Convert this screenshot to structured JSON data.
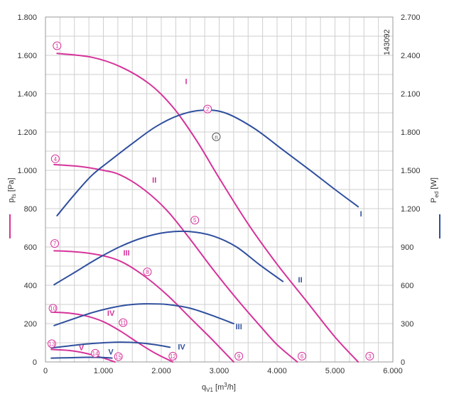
{
  "chart_data": {
    "type": "line",
    "id_label": "143092",
    "xlabel_html": {
      "base": "q",
      "sub": "V1",
      "unit_pre": " [m",
      "unit_sup": "3",
      "unit_post": "/h]"
    },
    "ylabel_left": {
      "base": "p",
      "sub": "fs",
      "unit": " [Pa]"
    },
    "ylabel_right": {
      "base": "P",
      "sub": "ed",
      "unit": " [W]"
    },
    "xlim": [
      0,
      6000
    ],
    "ylim_left": [
      0,
      1800
    ],
    "ylim_right": [
      0,
      2700
    ],
    "x_ticks": [
      0,
      1000,
      2000,
      3000,
      4000,
      5000,
      6000
    ],
    "x_tick_labels": [
      "0",
      "1.000",
      "2.000",
      "3.000",
      "4.000",
      "5.000",
      "6.000"
    ],
    "y_left_ticks": [
      0,
      200,
      400,
      600,
      800,
      1000,
      1200,
      1400,
      1600,
      1800
    ],
    "y_left_tick_labels": [
      "0",
      "200",
      "400",
      "600",
      "800",
      "1.000",
      "1.200",
      "1.400",
      "1.600",
      "1.800"
    ],
    "y_right_ticks": [
      0,
      300,
      600,
      900,
      1200,
      1500,
      1800,
      2100,
      2400,
      2700
    ],
    "y_right_tick_labels": [
      "0",
      "300",
      "600",
      "900",
      "1.200",
      "1.500",
      "1.800",
      "2.100",
      "2.400",
      "2.700"
    ],
    "x_minor_step": 250,
    "y_minor_step": 100,
    "grid": true,
    "colors": {
      "pressure": "#d6339a",
      "power": "#2f4f9e",
      "grid": "#cfcfcf",
      "text": "#333333",
      "special": "#555555"
    },
    "series": [
      {
        "name": "I",
        "kind": "pressure",
        "axis": "left",
        "x": [
          200,
          800,
          1300,
          1800,
          2200,
          2600,
          3000,
          3500,
          4000,
          4500,
          5000,
          5400
        ],
        "y": [
          1610,
          1590,
          1540,
          1450,
          1330,
          1160,
          960,
          720,
          510,
          320,
          130,
          0
        ]
      },
      {
        "name": "II",
        "kind": "pressure",
        "axis": "left",
        "x": [
          150,
          600,
          1000,
          1300,
          1700,
          2100,
          2500,
          2900,
          3300,
          3700,
          4000,
          4350
        ],
        "y": [
          1030,
          1020,
          1000,
          975,
          900,
          790,
          640,
          480,
          330,
          190,
          90,
          0
        ]
      },
      {
        "name": "III",
        "kind": "pressure",
        "axis": "left",
        "x": [
          150,
          500,
          900,
          1300,
          1700,
          2100,
          2500,
          2900,
          3250
        ],
        "y": [
          580,
          575,
          560,
          525,
          450,
          350,
          230,
          110,
          0
        ]
      },
      {
        "name": "IV",
        "kind": "pressure",
        "axis": "left",
        "x": [
          100,
          400,
          700,
          1000,
          1300,
          1600,
          1900,
          2200
        ],
        "y": [
          260,
          255,
          240,
          210,
          160,
          100,
          45,
          0
        ]
      },
      {
        "name": "V",
        "kind": "pressure",
        "axis": "left",
        "x": [
          100,
          400,
          700,
          1000,
          1200
        ],
        "y": [
          65,
          60,
          45,
          20,
          0
        ]
      },
      {
        "name": "I",
        "kind": "power",
        "axis": "right",
        "x": [
          200,
          500,
          800,
          1100,
          1500,
          1900,
          2300,
          2700,
          3100,
          3600,
          4100,
          4600,
          5000,
          5400
        ],
        "y": [
          1145,
          1310,
          1460,
          1570,
          1710,
          1840,
          1930,
          1970,
          1950,
          1830,
          1660,
          1490,
          1350,
          1215
        ]
      },
      {
        "name": "II",
        "kind": "power",
        "axis": "right",
        "x": [
          150,
          500,
          900,
          1300,
          1700,
          2100,
          2500,
          2900,
          3300,
          3700,
          4100
        ],
        "y": [
          605,
          700,
          810,
          905,
          975,
          1015,
          1020,
          985,
          900,
          760,
          630
        ]
      },
      {
        "name": "III",
        "kind": "power",
        "axis": "right",
        "x": [
          150,
          500,
          800,
          1100,
          1400,
          1700,
          2100,
          2500,
          2900,
          3250
        ],
        "y": [
          285,
          340,
          385,
          420,
          445,
          455,
          450,
          420,
          360,
          300
        ]
      },
      {
        "name": "IV",
        "kind": "power",
        "axis": "right",
        "x": [
          100,
          400,
          700,
          1000,
          1300,
          1600,
          1900,
          2150
        ],
        "y": [
          110,
          125,
          140,
          150,
          155,
          150,
          135,
          115
        ]
      },
      {
        "name": "V",
        "kind": "power",
        "axis": "right",
        "x": [
          100,
          400,
          700,
          1000,
          1150
        ],
        "y": [
          30,
          33,
          36,
          35,
          30
        ]
      }
    ],
    "roman_labels": [
      {
        "text": "I",
        "kind": "pressure",
        "x": 2430,
        "y_left": 1450
      },
      {
        "text": "II",
        "kind": "pressure",
        "x": 1880,
        "y_left": 935
      },
      {
        "text": "III",
        "kind": "pressure",
        "x": 1400,
        "y_left": 555
      },
      {
        "text": "IV",
        "kind": "pressure",
        "x": 1130,
        "y_left": 240
      },
      {
        "text": "V",
        "kind": "pressure",
        "x": 620,
        "y_left": 62
      },
      {
        "text": "I",
        "kind": "power",
        "x": 5450,
        "y_left": 760
      },
      {
        "text": "II",
        "kind": "power",
        "x": 4400,
        "y_left": 415
      },
      {
        "text": "III",
        "kind": "power",
        "x": 3340,
        "y_left": 170
      },
      {
        "text": "IV",
        "kind": "power",
        "x": 2350,
        "y_left": 65
      },
      {
        "text": "V",
        "kind": "power",
        "x": 1130,
        "y_left": 38
      }
    ],
    "markers": [
      {
        "label": "1",
        "kind": "pressure",
        "x": 200,
        "y_left": 1650
      },
      {
        "label": "2",
        "kind": "pressure",
        "x": 2800,
        "y_left": 1320
      },
      {
        "label": "n",
        "kind": "special",
        "x": 2950,
        "y_left": 1175
      },
      {
        "label": "3",
        "kind": "pressure",
        "x": 5600,
        "y_left": 30
      },
      {
        "label": "4",
        "kind": "pressure",
        "x": 170,
        "y_left": 1060
      },
      {
        "label": "5",
        "kind": "pressure",
        "x": 2580,
        "y_left": 740
      },
      {
        "label": "6",
        "kind": "pressure",
        "x": 4430,
        "y_left": 30
      },
      {
        "label": "7",
        "kind": "pressure",
        "x": 160,
        "y_left": 618
      },
      {
        "label": "8",
        "kind": "pressure",
        "x": 1760,
        "y_left": 470
      },
      {
        "label": "9",
        "kind": "pressure",
        "x": 3340,
        "y_left": 30
      },
      {
        "label": "10",
        "kind": "pressure",
        "x": 130,
        "y_left": 280
      },
      {
        "label": "11",
        "kind": "pressure",
        "x": 1340,
        "y_left": 205
      },
      {
        "label": "12",
        "kind": "pressure",
        "x": 2200,
        "y_left": 30
      },
      {
        "label": "13",
        "kind": "pressure",
        "x": 110,
        "y_left": 95
      },
      {
        "label": "14",
        "kind": "pressure",
        "x": 860,
        "y_left": 45
      },
      {
        "label": "15",
        "kind": "pressure",
        "x": 1260,
        "y_left": 28
      }
    ]
  }
}
